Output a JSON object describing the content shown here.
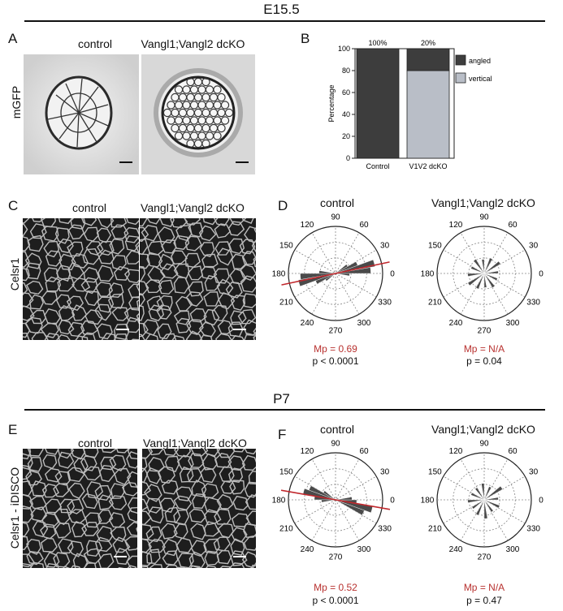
{
  "sections": {
    "e155_title": "E15.5",
    "p7_title": "P7"
  },
  "panels": {
    "A": {
      "letter": "A",
      "row_label": "mGFP",
      "left_label": "control",
      "right_label": "Vangl1;Vangl2 dcKO"
    },
    "B": {
      "letter": "B"
    },
    "C": {
      "letter": "C",
      "row_label": "Celsr1",
      "left_label": "control",
      "right_label": "Vangl1;Vangl2 dcKO"
    },
    "D": {
      "letter": "D",
      "left_label": "control",
      "right_label": "Vangl1;Vangl2 dcKO",
      "left_mp": "Mp = 0.69",
      "left_p": "p < 0.0001",
      "right_mp": "Mp = N/A",
      "right_p": "p = 0.04"
    },
    "E": {
      "letter": "E",
      "row_label": "Celsr1 - iDISCO",
      "left_label": "control",
      "right_label": "Vangl1;Vangl2 dcKO"
    },
    "F": {
      "letter": "F",
      "left_label": "control",
      "right_label": "Vangl1;Vangl2 dcKO",
      "left_mp": "Mp = 0.52",
      "left_p": "p < 0.0001",
      "right_mp": "Mp = N/A",
      "right_p": "p = 0.47"
    }
  },
  "polar_tick_labels": [
    "90",
    "60",
    "30",
    "0",
    "330",
    "300",
    "270",
    "240",
    "210",
    "180",
    "150",
    "120"
  ],
  "colors": {
    "angled": "#3d3d3d",
    "vertical": "#b9bec7",
    "mean_line": "#c0282d",
    "mp_text": "#b8312f"
  },
  "chart_data": [
    {
      "type": "bar",
      "stacked": true,
      "categories": [
        "Control",
        "V1V2 dcKO"
      ],
      "series": [
        {
          "name": "vertical",
          "values": [
            0,
            80
          ]
        },
        {
          "name": "angled",
          "values": [
            100,
            20
          ]
        }
      ],
      "data_labels": [
        "100%",
        "20%"
      ],
      "title": "",
      "xlabel": "",
      "ylabel": "Percentage",
      "ylim": [
        0,
        100
      ],
      "yticks": [
        "0",
        "20",
        "40",
        "60",
        "80",
        "100"
      ],
      "legend": "right"
    },
    {
      "type": "polar-histogram",
      "panel": "D-control",
      "mean_angle_deg": 12,
      "bins": [
        {
          "angle": 5,
          "r": 0.75
        },
        {
          "angle": 15,
          "r": 0.85
        },
        {
          "angle": 25,
          "r": 0.5
        },
        {
          "angle": 35,
          "r": 0.3
        },
        {
          "angle": 185,
          "r": 0.75
        },
        {
          "angle": 195,
          "r": 0.8
        },
        {
          "angle": 205,
          "r": 0.45
        },
        {
          "angle": 215,
          "r": 0.25
        },
        {
          "angle": 355,
          "r": 0.3
        },
        {
          "angle": 175,
          "r": 0.35
        }
      ]
    },
    {
      "type": "polar-histogram",
      "panel": "D-dcKO",
      "bins": [
        {
          "angle": 5,
          "r": 0.3
        },
        {
          "angle": 35,
          "r": 0.4
        },
        {
          "angle": 65,
          "r": 0.35
        },
        {
          "angle": 95,
          "r": 0.3
        },
        {
          "angle": 125,
          "r": 0.35
        },
        {
          "angle": 155,
          "r": 0.3
        },
        {
          "angle": 185,
          "r": 0.35
        },
        {
          "angle": 215,
          "r": 0.4
        },
        {
          "angle": 245,
          "r": 0.35
        },
        {
          "angle": 275,
          "r": 0.3
        },
        {
          "angle": 305,
          "r": 0.35
        },
        {
          "angle": 335,
          "r": 0.3
        }
      ]
    },
    {
      "type": "polar-histogram",
      "panel": "F-control",
      "mean_angle_deg": 170,
      "bins": [
        {
          "angle": 155,
          "r": 0.6
        },
        {
          "angle": 165,
          "r": 0.7
        },
        {
          "angle": 175,
          "r": 0.45
        },
        {
          "angle": 185,
          "r": 0.3
        },
        {
          "angle": 335,
          "r": 0.65
        },
        {
          "angle": 345,
          "r": 0.8
        },
        {
          "angle": 355,
          "r": 0.45
        },
        {
          "angle": 5,
          "r": 0.35
        },
        {
          "angle": 145,
          "r": 0.3
        }
      ]
    },
    {
      "type": "polar-histogram",
      "panel": "F-dcKO",
      "bins": [
        {
          "angle": 5,
          "r": 0.3
        },
        {
          "angle": 35,
          "r": 0.45
        },
        {
          "angle": 65,
          "r": 0.3
        },
        {
          "angle": 95,
          "r": 0.35
        },
        {
          "angle": 125,
          "r": 0.3
        },
        {
          "angle": 155,
          "r": 0.3
        },
        {
          "angle": 185,
          "r": 0.35
        },
        {
          "angle": 215,
          "r": 0.3
        },
        {
          "angle": 245,
          "r": 0.35
        },
        {
          "angle": 275,
          "r": 0.4
        },
        {
          "angle": 305,
          "r": 0.3
        },
        {
          "angle": 335,
          "r": 0.35
        }
      ]
    }
  ]
}
